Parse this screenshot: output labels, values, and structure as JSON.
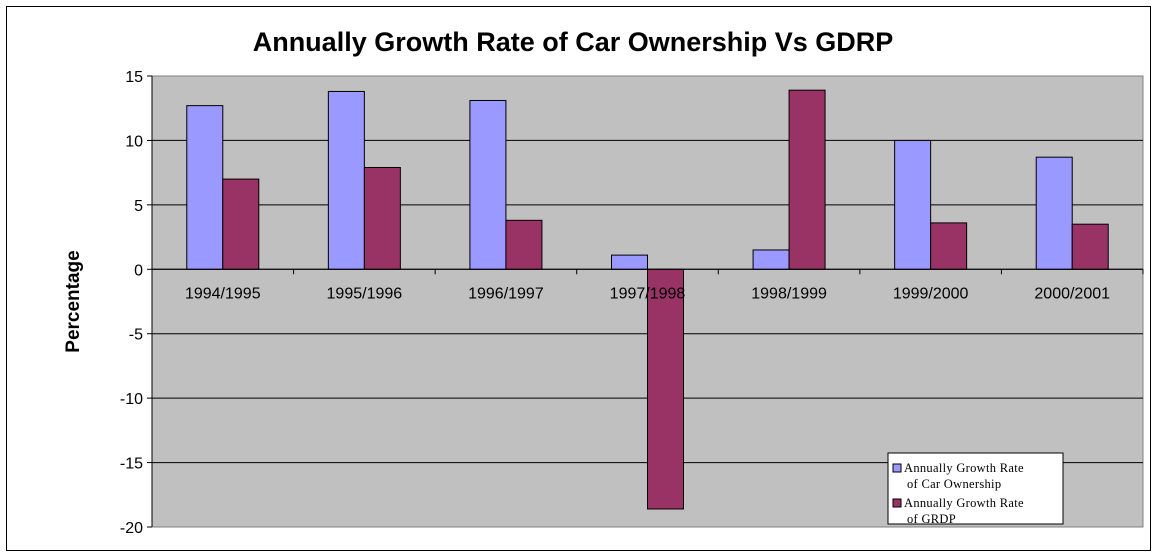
{
  "chart_data": {
    "type": "bar",
    "title": "Annually Growth Rate of Car Ownership Vs GDRP",
    "xlabel": "",
    "ylabel": "Percentage",
    "ylim": [
      -20,
      15
    ],
    "yticks": [
      15,
      10,
      5,
      0,
      -5,
      -10,
      -15,
      -20
    ],
    "grid": true,
    "legend_position": "bottom-right",
    "categories": [
      "1994/1995",
      "1995/1996",
      "1996/1997",
      "1997/1998",
      "1998/1999",
      "1999/2000",
      "2000/2001"
    ],
    "series": [
      {
        "name": "Annually Growth Rate of Car Ownership",
        "legend_lines": [
          "Annually Growth Rate",
          "of Car Ownership"
        ],
        "color": "#9999FF",
        "values": [
          12.7,
          13.8,
          13.1,
          1.1,
          1.5,
          10.0,
          8.7
        ]
      },
      {
        "name": "Annually Growth Rate of GRDP",
        "legend_lines": [
          "Annually Growth Rate",
          "of GRDP"
        ],
        "color": "#993366",
        "values": [
          7.0,
          7.9,
          3.8,
          -18.6,
          13.9,
          3.6,
          3.5
        ]
      }
    ],
    "plot_background": "#C0C0C0"
  }
}
